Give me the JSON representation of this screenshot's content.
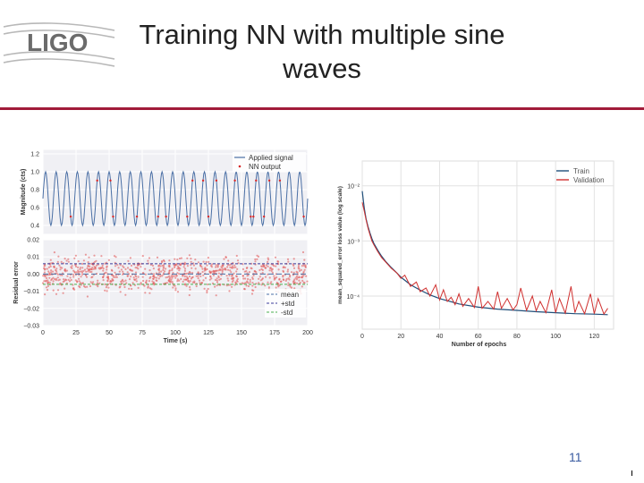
{
  "slide": {
    "title_line1": "Training NN with multiple sine",
    "title_line2": "waves",
    "logo_text": "LIGO",
    "page_number": "11",
    "accent_color": "#a11b3a"
  },
  "chart_data": [
    {
      "type": "line",
      "ylabel": "Magnitude (cts)",
      "ylim": [
        0.3,
        1.25
      ],
      "yticks": [
        "1.2",
        "1.0",
        "0.8",
        "0.6",
        "0.4"
      ],
      "xlim": [
        0,
        200
      ],
      "grid": true,
      "legend_position": "top-right",
      "series": [
        {
          "name": "Applied signal",
          "color": "#4a6fa5",
          "form": "sine",
          "period_s": 8,
          "y_min": 0.4,
          "y_max": 1.0
        },
        {
          "name": "NN output",
          "color": "#d62728",
          "form": "markers",
          "note_values": [
            0.6,
            0.95
          ]
        }
      ]
    },
    {
      "type": "scatter",
      "ylabel": "Residual error",
      "xlabel": "Time (s)",
      "xlim": [
        0,
        200
      ],
      "ylim": [
        -0.03,
        0.02
      ],
      "xticks": [
        "0",
        "25",
        "50",
        "75",
        "100",
        "125",
        "150",
        "175",
        "200"
      ],
      "yticks": [
        "0.02",
        "0.01",
        "0.00",
        "−0.01",
        "−0.02",
        "−0.03"
      ],
      "grid": true,
      "legend_position": "bottom-right",
      "series": [
        {
          "name": "mean",
          "value": 0.0,
          "color": "#4a6fa5"
        },
        {
          "name": "+std",
          "value": 0.006,
          "color": "#3a3a9a"
        },
        {
          "name": "-std",
          "value": -0.006,
          "color": "#4caf50"
        }
      ],
      "scatter_color": "#e05050",
      "scatter_spread": 0.006
    },
    {
      "type": "line",
      "xlabel": "Number of epochs",
      "ylabel": "mean_squared_error loss value (log scale)",
      "xlim": [
        0,
        130
      ],
      "ylim_log10": [
        -4.6,
        -1.55
      ],
      "xticks": [
        "0",
        "20",
        "40",
        "60",
        "80",
        "100",
        "120"
      ],
      "ytick_labels": [
        "10⁻²",
        "10⁻³",
        "10⁻⁴"
      ],
      "ytick_values": [
        -2,
        -3,
        -4
      ],
      "grid": true,
      "legend_position": "top-right",
      "series": [
        {
          "name": "Train",
          "color": "#1f4e79",
          "x": [
            0,
            1,
            2,
            3,
            4,
            5,
            6,
            8,
            10,
            12,
            15,
            18,
            20,
            25,
            30,
            35,
            40,
            50,
            60,
            70,
            80,
            90,
            100,
            110,
            120,
            127
          ],
          "y": [
            0.008,
            0.004,
            0.0025,
            0.0018,
            0.0014,
            0.0011,
            0.0009,
            0.00068,
            0.00053,
            0.00043,
            0.00033,
            0.00026,
            0.00022,
            0.00016,
            0.000128,
            0.000105,
            9e-05,
            7.2e-05,
            6.3e-05,
            5.8e-05,
            5.5e-05,
            5.2e-05,
            5e-05,
            4.8e-05,
            4.7e-05,
            4.6e-05
          ]
        },
        {
          "name": "Validation",
          "color": "#d0302f",
          "x": [
            0,
            1,
            2,
            3,
            4,
            5,
            6,
            8,
            10,
            12,
            15,
            18,
            20,
            22,
            25,
            28,
            30,
            33,
            35,
            38,
            40,
            42,
            44,
            46,
            48,
            50,
            52,
            55,
            58,
            60,
            62,
            65,
            68,
            70,
            72,
            75,
            78,
            80,
            82,
            85,
            88,
            90,
            92,
            95,
            98,
            100,
            102,
            105,
            108,
            110,
            112,
            115,
            118,
            120,
            122,
            125,
            127
          ],
          "y": [
            0.005,
            0.0035,
            0.0024,
            0.0017,
            0.0013,
            0.001,
            0.00085,
            0.00064,
            0.0005,
            0.00042,
            0.00032,
            0.00026,
            0.00021,
            0.00024,
            0.00015,
            0.00018,
            0.00012,
            0.00014,
            0.0001,
            0.00016,
            8.5e-05,
            0.00013,
            8e-05,
            9.5e-05,
            7e-05,
            0.00011,
            6.5e-05,
            9e-05,
            6.2e-05,
            0.00015,
            6e-05,
            8e-05,
            5.8e-05,
            0.00012,
            6e-05,
            9e-05,
            5.6e-05,
            7e-05,
            0.00014,
            5.5e-05,
            0.0001,
            5.4e-05,
            8e-05,
            5e-05,
            0.00013,
            5e-05,
            9e-05,
            4.9e-05,
            0.00015,
            5e-05,
            8e-05,
            4.8e-05,
            0.00011,
            4.8e-05,
            9e-05,
            4.7e-05,
            6e-05
          ]
        }
      ]
    }
  ]
}
